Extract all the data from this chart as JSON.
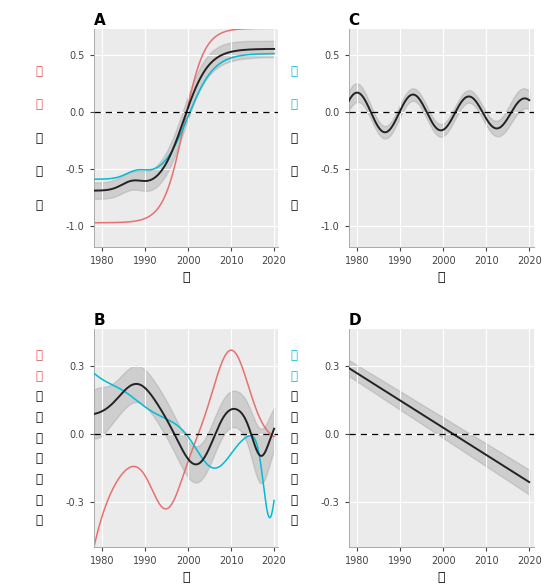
{
  "title_A": "A",
  "title_B": "B",
  "title_C": "C",
  "title_D": "D",
  "ylabel_A_colored": "表層",
  "ylabel_A_black": "の水温",
  "ylabel_B_colored": "表層",
  "ylabel_B_black": "の溶存酸素濃度",
  "ylabel_C_colored": "底層",
  "ylabel_C_black": "の水温",
  "ylabel_D_colored": "底層",
  "ylabel_D_black": "の溶存酸素濃度",
  "ylabel_color_A": "#e05050",
  "ylabel_color_B": "#e05050",
  "ylabel_color_C": "#00bcd4",
  "ylabel_color_D": "#00bcd4",
  "xlabel": "年",
  "bg_color": "#ebebeb",
  "grid_color": "#ffffff",
  "red_color": "#e87070",
  "cyan_color": "#00bcd4",
  "black_color": "#222222",
  "shade_color": "#999999"
}
